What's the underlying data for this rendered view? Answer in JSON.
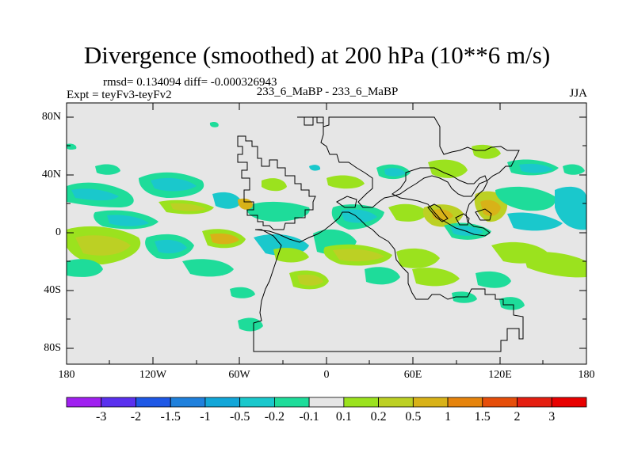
{
  "title": "Divergence (smoothed) at 200 hPa (10**6 m/s)",
  "rmsd_text": "rmsd= 0.134094 diff= -0.000326943",
  "expt_text": "Expt = teyFv3-teyFv2",
  "case_text": "233_6_MaBP - 233_6_MaBP",
  "season": "JJA",
  "lat_labels": [
    "80N",
    "40N",
    "0",
    "40S",
    "80S"
  ],
  "lon_labels": [
    "180",
    "120W",
    "60W",
    "0",
    "60E",
    "120E",
    "180"
  ],
  "colorbar": {
    "labels": [
      "-3",
      "-2",
      "-1.5",
      "-1",
      "-0.5",
      "-0.2",
      "-0.1",
      "0.1",
      "0.2",
      "0.5",
      "1",
      "1.5",
      "2",
      "3"
    ],
    "colors": [
      "#a020f0",
      "#5a30ee",
      "#1e58e6",
      "#1f80dc",
      "#12a6d8",
      "#1ac8cc",
      "#1edc9a",
      "#e6e6e6",
      "#9be21e",
      "#bcd024",
      "#d8b218",
      "#e6840c",
      "#e64e0a",
      "#e41e10",
      "#e80000"
    ]
  },
  "colors": {
    "background": "#e6e6e6",
    "neg_weak": "#1edc9a",
    "neg_mid": "#1ac8cc",
    "pos_weak": "#9be21e",
    "pos_mid": "#bcd024",
    "pos_strong": "#d8b218"
  }
}
